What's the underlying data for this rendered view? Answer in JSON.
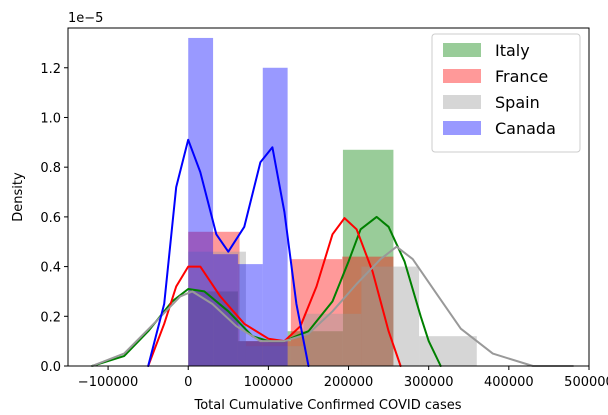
{
  "chart_data": {
    "type": "histogram+kde",
    "xlabel": "Total Cumulative Confirmed COVID cases",
    "ylabel": "Density",
    "scale_label": "1e−5",
    "xlim": [
      -150000,
      500000
    ],
    "ylim": [
      0,
      1.36
    ],
    "x_ticks": [
      -100000,
      0,
      100000,
      200000,
      300000,
      400000,
      500000
    ],
    "x_tick_labels": [
      "−100000",
      "0",
      "100000",
      "200000",
      "300000",
      "400000",
      "500000"
    ],
    "y_ticks": [
      0.0,
      0.2,
      0.4,
      0.6,
      0.8,
      1.0,
      1.2
    ],
    "y_tick_labels": [
      "0.0",
      "0.2",
      "0.4",
      "0.6",
      "0.8",
      "1.0",
      "1.2"
    ],
    "legend_position": "top-right",
    "series": [
      {
        "name": "Italy",
        "color": "#008000",
        "bins": [
          {
            "x0": 0,
            "x1": 62000,
            "h": 0.3
          },
          {
            "x0": 62000,
            "x1": 124000,
            "h": 0.1
          },
          {
            "x0": 124000,
            "x1": 193000,
            "h": 0.14
          },
          {
            "x0": 193000,
            "x1": 256000,
            "h": 0.87
          }
        ],
        "kde": [
          [
            -120000,
            0.0
          ],
          [
            -80000,
            0.04
          ],
          [
            -50000,
            0.14
          ],
          [
            -20000,
            0.26
          ],
          [
            0,
            0.31
          ],
          [
            20000,
            0.3
          ],
          [
            50000,
            0.22
          ],
          [
            80000,
            0.12
          ],
          [
            100000,
            0.1
          ],
          [
            120000,
            0.1
          ],
          [
            150000,
            0.14
          ],
          [
            180000,
            0.26
          ],
          [
            200000,
            0.42
          ],
          [
            215000,
            0.55
          ],
          [
            235000,
            0.6
          ],
          [
            250000,
            0.56
          ],
          [
            270000,
            0.42
          ],
          [
            290000,
            0.2
          ],
          [
            300000,
            0.1
          ],
          [
            315000,
            0.0
          ]
        ]
      },
      {
        "name": "France",
        "color": "#ff0000",
        "bins": [
          {
            "x0": 0,
            "x1": 64000,
            "h": 0.54
          },
          {
            "x0": 64000,
            "x1": 128000,
            "h": 0.1
          },
          {
            "x0": 128000,
            "x1": 192000,
            "h": 0.43
          },
          {
            "x0": 192000,
            "x1": 256000,
            "h": 0.44
          }
        ],
        "kde": [
          [
            -50000,
            0.0
          ],
          [
            -30000,
            0.17
          ],
          [
            -15000,
            0.32
          ],
          [
            0,
            0.4
          ],
          [
            15000,
            0.4
          ],
          [
            40000,
            0.28
          ],
          [
            70000,
            0.17
          ],
          [
            100000,
            0.11
          ],
          [
            120000,
            0.1
          ],
          [
            140000,
            0.16
          ],
          [
            160000,
            0.32
          ],
          [
            180000,
            0.53
          ],
          [
            195000,
            0.595
          ],
          [
            210000,
            0.55
          ],
          [
            230000,
            0.38
          ],
          [
            250000,
            0.14
          ],
          [
            265000,
            0.0
          ]
        ]
      },
      {
        "name": "Spain",
        "color": "#999999",
        "bins": [
          {
            "x0": 0,
            "x1": 72000,
            "h": 0.46
          },
          {
            "x0": 72000,
            "x1": 144000,
            "h": 0.08
          },
          {
            "x0": 144000,
            "x1": 216000,
            "h": 0.21
          },
          {
            "x0": 216000,
            "x1": 288000,
            "h": 0.4
          },
          {
            "x0": 288000,
            "x1": 360000,
            "h": 0.12
          }
        ],
        "kde": [
          [
            -120000,
            0.0
          ],
          [
            -80000,
            0.05
          ],
          [
            -40000,
            0.18
          ],
          [
            -10000,
            0.28
          ],
          [
            5000,
            0.3
          ],
          [
            30000,
            0.25
          ],
          [
            60000,
            0.16
          ],
          [
            90000,
            0.1
          ],
          [
            120000,
            0.1
          ],
          [
            150000,
            0.13
          ],
          [
            180000,
            0.22
          ],
          [
            210000,
            0.33
          ],
          [
            240000,
            0.43
          ],
          [
            260000,
            0.48
          ],
          [
            280000,
            0.43
          ],
          [
            310000,
            0.29
          ],
          [
            340000,
            0.15
          ],
          [
            380000,
            0.05
          ],
          [
            430000,
            0.0
          ],
          [
            480000,
            0.0
          ]
        ]
      },
      {
        "name": "Canada",
        "color": "#0000ff",
        "bins": [
          {
            "x0": 0,
            "x1": 31000,
            "h": 1.32
          },
          {
            "x0": 31000,
            "x1": 62000,
            "h": 0.45
          },
          {
            "x0": 62000,
            "x1": 93000,
            "h": 0.41
          },
          {
            "x0": 93000,
            "x1": 124000,
            "h": 1.2
          }
        ],
        "kde": [
          [
            -50000,
            0.0
          ],
          [
            -30000,
            0.25
          ],
          [
            -15000,
            0.72
          ],
          [
            0,
            0.91
          ],
          [
            15000,
            0.78
          ],
          [
            35000,
            0.53
          ],
          [
            50000,
            0.46
          ],
          [
            70000,
            0.56
          ],
          [
            90000,
            0.82
          ],
          [
            105000,
            0.88
          ],
          [
            120000,
            0.62
          ],
          [
            135000,
            0.25
          ],
          [
            150000,
            0.0
          ]
        ]
      }
    ]
  }
}
